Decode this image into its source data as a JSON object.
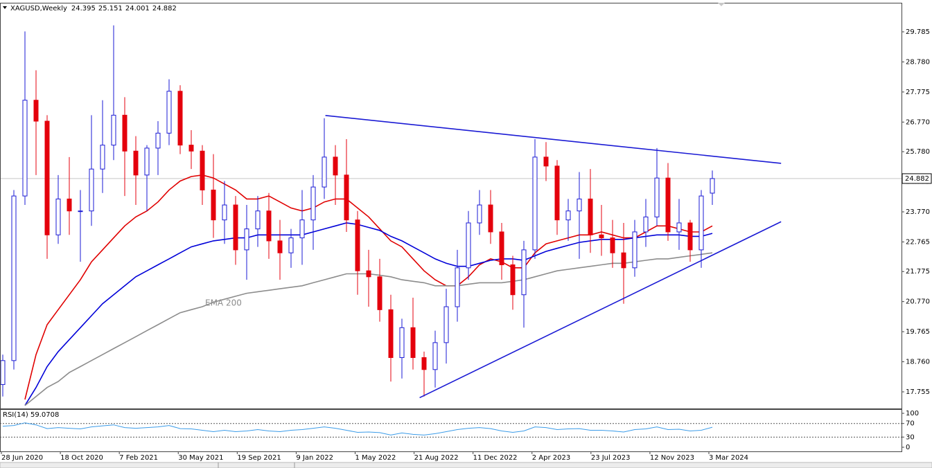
{
  "chart_data": {
    "type": "candlestick",
    "symbol": "XAGUSD,Weekly",
    "ohlc_header": [
      24.395,
      25.151,
      24.001,
      24.882
    ],
    "up_color": "#1a1ad4",
    "down_color": "#e4000c",
    "open": [
      18.0,
      18.8,
      24.3,
      27.5,
      26.8,
      23.0,
      24.2,
      23.8,
      23.8,
      25.2,
      26.0,
      27.0,
      25.8,
      25.0,
      25.9,
      26.4,
      27.8,
      26.0,
      25.8,
      24.5,
      23.5,
      24.0,
      22.5,
      23.2,
      23.8,
      22.8,
      22.4,
      22.9,
      23.5,
      24.6,
      25.6,
      25.0,
      23.5,
      21.8,
      21.6,
      20.5,
      18.9,
      19.9,
      18.9,
      18.5,
      19.4,
      20.6,
      21.9,
      23.4,
      24.0,
      23.1,
      22.0,
      21.0,
      22.5,
      25.6,
      25.3,
      23.5,
      23.8,
      24.2,
      23.0,
      22.9,
      22.4,
      21.9,
      23.1,
      23.6,
      24.9,
      23.1,
      23.4,
      22.5,
      24.395
    ],
    "high": [
      19.0,
      24.5,
      29.8,
      28.5,
      27.0,
      25.0,
      25.6,
      24.5,
      27.0,
      27.5,
      30.0,
      27.6,
      26.3,
      26.0,
      26.8,
      28.2,
      28.0,
      26.5,
      26.0,
      25.7,
      24.8,
      24.3,
      24.0,
      24.3,
      24.4,
      23.5,
      23.2,
      24.5,
      25.0,
      26.9,
      26.0,
      26.2,
      23.8,
      22.5,
      22.2,
      21.0,
      20.2,
      20.9,
      19.1,
      19.8,
      21.2,
      22.5,
      23.8,
      24.5,
      24.5,
      23.4,
      22.3,
      22.8,
      26.2,
      26.1,
      25.5,
      24.2,
      25.1,
      25.2,
      24.0,
      23.5,
      23.4,
      23.5,
      24.2,
      25.9,
      25.4,
      24.2,
      23.5,
      24.5,
      25.151
    ],
    "low": [
      17.6,
      18.5,
      24.0,
      25.0,
      22.2,
      22.7,
      23.0,
      22.1,
      23.3,
      24.4,
      25.5,
      24.3,
      24.0,
      23.8,
      25.0,
      26.0,
      25.7,
      25.2,
      24.0,
      22.9,
      22.7,
      22.0,
      21.5,
      22.6,
      22.2,
      21.5,
      21.9,
      22.0,
      22.5,
      24.2,
      24.0,
      23.1,
      21.0,
      20.6,
      20.1,
      18.1,
      18.2,
      18.5,
      17.6,
      17.9,
      18.7,
      20.1,
      21.5,
      23.0,
      22.7,
      21.5,
      20.5,
      19.9,
      22.2,
      24.8,
      23.0,
      22.8,
      22.2,
      22.4,
      22.3,
      21.9,
      20.7,
      21.6,
      22.6,
      23.3,
      22.8,
      22.5,
      22.1,
      21.9,
      24.001
    ],
    "close": [
      18.8,
      24.3,
      27.5,
      26.8,
      23.0,
      24.2,
      23.8,
      23.8,
      25.2,
      26.0,
      27.0,
      25.8,
      25.0,
      25.9,
      26.4,
      27.8,
      26.0,
      25.8,
      24.5,
      23.5,
      24.0,
      22.5,
      23.2,
      23.8,
      22.8,
      22.4,
      22.9,
      23.5,
      24.6,
      25.6,
      25.0,
      23.5,
      21.8,
      21.6,
      20.5,
      18.9,
      19.9,
      18.9,
      18.5,
      19.4,
      20.6,
      21.9,
      23.4,
      24.0,
      23.1,
      22.0,
      21.0,
      22.5,
      25.6,
      25.3,
      23.5,
      23.8,
      24.2,
      23.0,
      22.9,
      22.4,
      21.9,
      23.1,
      23.6,
      24.9,
      23.1,
      23.4,
      22.5,
      24.3,
      24.882
    ],
    "overlays": [
      {
        "color": "#e00000",
        "values": [
          null,
          null,
          17.5,
          19.0,
          20.0,
          20.5,
          21.0,
          21.5,
          22.1,
          22.5,
          22.9,
          23.3,
          23.6,
          23.8,
          24.1,
          24.5,
          24.8,
          24.95,
          25.0,
          24.9,
          24.7,
          24.5,
          24.2,
          24.2,
          24.3,
          24.1,
          23.9,
          23.8,
          23.9,
          24.1,
          24.2,
          24.2,
          23.9,
          23.6,
          23.2,
          22.8,
          22.6,
          22.2,
          21.8,
          21.5,
          21.3,
          21.3,
          21.6,
          22.0,
          22.2,
          22.1,
          21.9,
          21.9,
          22.4,
          22.7,
          22.8,
          22.9,
          23.0,
          23.0,
          23.1,
          23.0,
          22.9,
          22.9,
          23.1,
          23.3,
          23.3,
          23.2,
          23.1,
          23.1,
          23.3
        ]
      },
      {
        "color": "#0000d8",
        "values": [
          null,
          null,
          17.3,
          17.9,
          18.6,
          19.1,
          19.5,
          19.9,
          20.3,
          20.7,
          21.0,
          21.3,
          21.6,
          21.8,
          22.0,
          22.2,
          22.4,
          22.6,
          22.7,
          22.8,
          22.85,
          22.9,
          22.9,
          23.0,
          23.0,
          23.0,
          23.0,
          23.0,
          23.1,
          23.2,
          23.3,
          23.4,
          23.35,
          23.25,
          23.15,
          22.95,
          22.8,
          22.6,
          22.4,
          22.2,
          22.05,
          21.95,
          21.95,
          22.05,
          22.15,
          22.2,
          22.2,
          22.15,
          22.3,
          22.45,
          22.55,
          22.65,
          22.75,
          22.8,
          22.85,
          22.85,
          22.85,
          22.9,
          22.95,
          23.0,
          23.0,
          23.0,
          22.95,
          22.95,
          23.05
        ]
      },
      {
        "color": "#8c8c8c",
        "values": [
          null,
          null,
          17.3,
          17.6,
          17.9,
          18.1,
          18.4,
          18.6,
          18.8,
          19.0,
          19.2,
          19.4,
          19.6,
          19.8,
          20.0,
          20.2,
          20.4,
          20.5,
          20.6,
          20.75,
          20.85,
          20.95,
          21.05,
          21.1,
          21.15,
          21.2,
          21.25,
          21.3,
          21.4,
          21.5,
          21.6,
          21.7,
          21.7,
          21.7,
          21.65,
          21.6,
          21.5,
          21.45,
          21.4,
          21.3,
          21.3,
          21.3,
          21.35,
          21.4,
          21.4,
          21.4,
          21.45,
          21.5,
          21.6,
          21.7,
          21.8,
          21.85,
          21.9,
          21.95,
          22.0,
          22.05,
          22.05,
          22.1,
          22.15,
          22.2,
          22.2,
          22.25,
          22.3,
          22.35,
          22.4
        ]
      }
    ],
    "annotation": "EMA 200",
    "trendlines": [
      {
        "color": "#1a1ad4",
        "x": [
          29.1,
          70.2
        ],
        "y": [
          26.99,
          25.39
        ]
      },
      {
        "color": "#1a1ad4",
        "x": [
          37.6,
          70.2
        ],
        "y": [
          17.56,
          23.44
        ]
      }
    ],
    "ylim": [
      17.2,
      30.733
    ],
    "yticks": [
      {
        "value": 29.785,
        "label": "29.785"
      },
      {
        "value": 28.78,
        "label": "28.780"
      },
      {
        "value": 27.775,
        "label": "27.775"
      },
      {
        "value": 26.77,
        "label": "26.770"
      },
      {
        "value": 25.78,
        "label": "25.780"
      },
      {
        "value": 24.775,
        "label": "24.775"
      },
      {
        "value": 23.77,
        "label": "23.770"
      },
      {
        "value": 22.765,
        "label": "22.765"
      },
      {
        "value": 21.775,
        "label": "21.775"
      },
      {
        "value": 20.77,
        "label": "20.770"
      },
      {
        "value": 19.765,
        "label": "19.765"
      },
      {
        "value": 18.76,
        "label": "18.760"
      },
      {
        "value": 17.755,
        "label": "17.755"
      }
    ],
    "x_labels": [
      "28 Jun 2020",
      "18 Oct 2020",
      "7 Feb 2021",
      "30 May 2021",
      "19 Sep 2021",
      "9 Jan 2022",
      "1 May 2022",
      "21 Aug 2022",
      "11 Dec 2022",
      "2 Apr 2023",
      "23 Jul 2023",
      "12 Nov 2023",
      "3 Mar 2024"
    ],
    "rsi": {
      "title": "RSI(14) 59.0708",
      "color": "#3a9be8",
      "values": [
        62,
        64,
        72,
        66,
        55,
        58,
        56,
        54,
        60,
        63,
        66,
        58,
        56,
        58,
        60,
        64,
        55,
        54,
        50,
        46,
        50,
        46,
        48,
        52,
        48,
        46,
        50,
        52,
        56,
        60,
        56,
        50,
        44,
        45,
        43,
        36,
        42,
        38,
        36,
        40,
        46,
        52,
        56,
        58,
        55,
        48,
        44,
        48,
        60,
        58,
        52,
        54,
        55,
        50,
        50,
        48,
        45,
        52,
        54,
        60,
        52,
        53,
        48,
        50,
        59.0708
      ],
      "ylim": [
        -12.2,
        110.2
      ],
      "yticks": [
        100,
        70,
        30,
        0
      ],
      "levels": [
        70,
        30
      ]
    }
  }
}
